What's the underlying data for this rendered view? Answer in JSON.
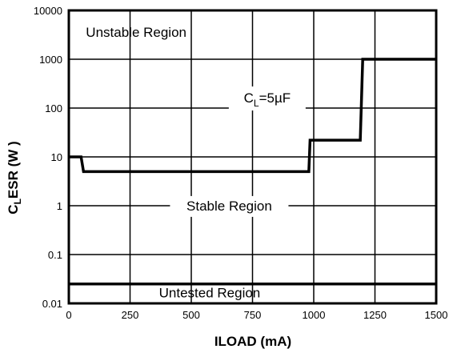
{
  "chart_data": {
    "type": "line",
    "title": "",
    "xlabel": "ILOAD (mA)",
    "ylabel": {
      "main": "C",
      "sub": "L",
      "rest": "ESR (W )"
    },
    "x_scale": "linear",
    "y_scale": "log",
    "xlim": [
      0,
      1500
    ],
    "ylim": [
      0.01,
      10000
    ],
    "grid": true,
    "x_ticks": [
      0,
      250,
      500,
      750,
      1000,
      1250,
      1500
    ],
    "x_tick_labels": [
      "0",
      "250",
      "500",
      "750",
      "1000",
      "1250",
      "1500"
    ],
    "y_ticks": [
      0.01,
      0.1,
      1,
      10,
      100,
      1000,
      10000
    ],
    "y_tick_labels": [
      "0.01",
      "0.1",
      "1",
      "10",
      "100",
      "1000",
      "10000"
    ],
    "series": [
      {
        "points": [
          [
            0,
            10
          ],
          [
            50,
            10
          ],
          [
            60,
            5
          ],
          [
            980,
            5
          ],
          [
            985,
            22
          ],
          [
            1190,
            22
          ],
          [
            1200,
            1000
          ],
          [
            1500,
            1000
          ]
        ]
      },
      {
        "points": [
          [
            0,
            0.025
          ],
          [
            1500,
            0.025
          ]
        ]
      }
    ],
    "annotations": [
      {
        "id": "unstable",
        "text": "Unstable Region",
        "x": 275,
        "y": 2900
      },
      {
        "id": "cap",
        "text_main": "C",
        "text_sub": "L",
        "text_rest": "=5µF",
        "x": 810,
        "y": 130
      },
      {
        "id": "stable",
        "text": "Stable Region",
        "x": 655,
        "y": 0.8
      },
      {
        "id": "untested",
        "text": "Untested Region",
        "x": 575,
        "y": 0.0133
      }
    ]
  }
}
